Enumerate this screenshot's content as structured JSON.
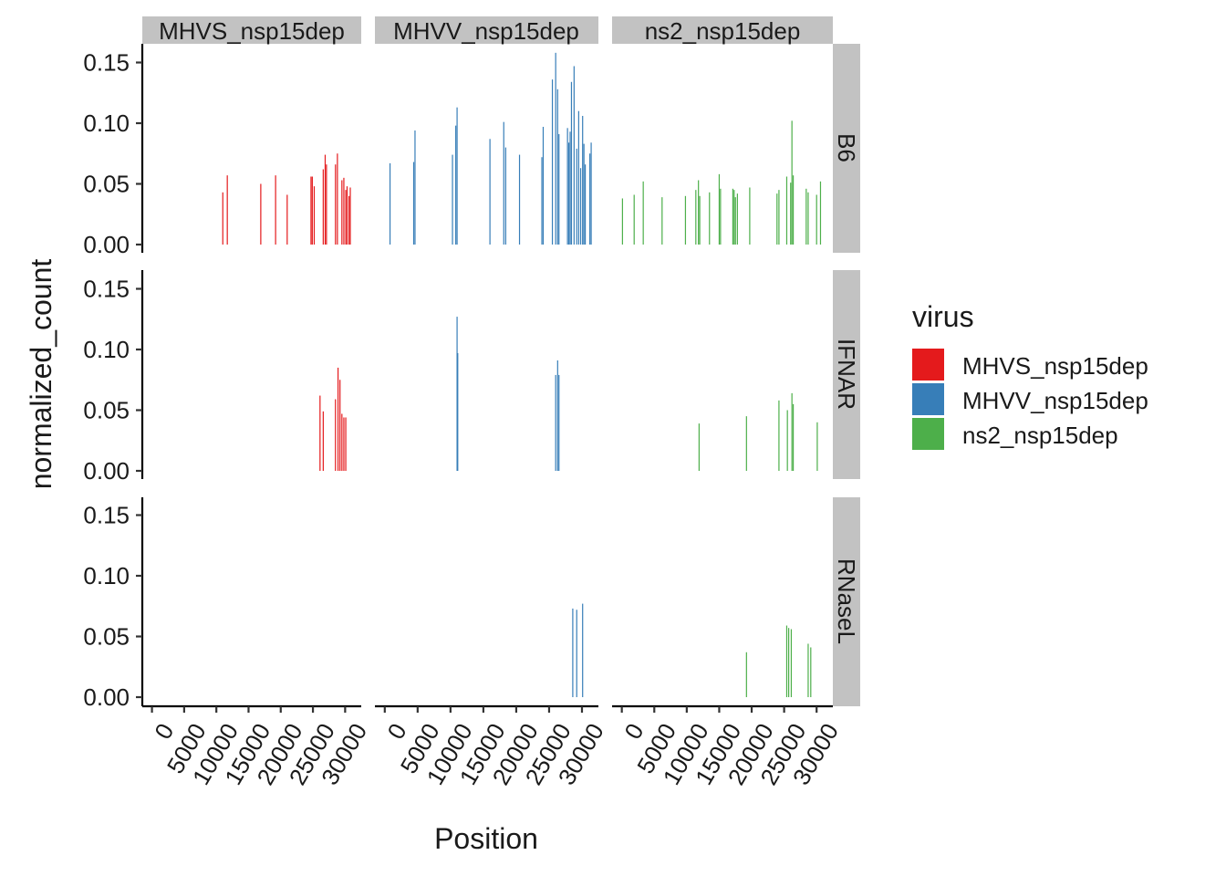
{
  "chart_data": {
    "type": "bar",
    "xlabel": "Position",
    "ylabel": "normalized_count",
    "xlim": [
      -1500,
      32500
    ],
    "ylim": [
      0,
      0.165
    ],
    "xticks": [
      "0",
      "5000",
      "10000",
      "15000",
      "20000",
      "25000",
      "30000"
    ],
    "yticks": [
      "0.00",
      "0.05",
      "0.10",
      "0.15"
    ],
    "column_facets": [
      "MHVS_nsp15dep",
      "MHVV_nsp15dep",
      "ns2_nsp15dep"
    ],
    "row_facets": [
      "B6",
      "IFNAR",
      "RNaseL"
    ],
    "legend": {
      "title": "virus",
      "position": "right",
      "items": [
        {
          "name": "MHVS_nsp15dep",
          "color": "#e41a1c"
        },
        {
          "name": "MHVV_nsp15dep",
          "color": "#377eb8"
        },
        {
          "name": "ns2_nsp15dep",
          "color": "#4daf4a"
        }
      ]
    },
    "panels": [
      {
        "row": "B6",
        "col": "MHVS_nsp15dep",
        "color": "#e41a1c",
        "x": [
          11000,
          11700,
          16900,
          19200,
          21000,
          24700,
          24900,
          25200,
          26600,
          26900,
          27100,
          28500,
          28800,
          29500,
          29800,
          30100,
          30300,
          30600,
          30800
        ],
        "y": [
          0.043,
          0.057,
          0.05,
          0.057,
          0.041,
          0.056,
          0.056,
          0.048,
          0.062,
          0.074,
          0.066,
          0.066,
          0.075,
          0.053,
          0.055,
          0.045,
          0.048,
          0.04,
          0.047
        ]
      },
      {
        "row": "B6",
        "col": "MHVV_nsp15dep",
        "color": "#377eb8",
        "x": [
          800,
          4400,
          4600,
          10300,
          10800,
          11000,
          16000,
          18100,
          18400,
          20500,
          23900,
          24100,
          25500,
          26000,
          26300,
          26500,
          27800,
          28000,
          28200,
          28400,
          28800,
          29200,
          29500,
          29800,
          30100,
          30300,
          30500,
          31200,
          31400
        ],
        "y": [
          0.067,
          0.068,
          0.094,
          0.074,
          0.098,
          0.113,
          0.087,
          0.101,
          0.08,
          0.074,
          0.072,
          0.097,
          0.136,
          0.158,
          0.128,
          0.091,
          0.096,
          0.084,
          0.093,
          0.134,
          0.147,
          0.079,
          0.11,
          0.063,
          0.106,
          0.083,
          0.066,
          0.075,
          0.084
        ]
      },
      {
        "row": "B6",
        "col": "ns2_nsp15dep",
        "color": "#4daf4a",
        "x": [
          100,
          1900,
          3300,
          6200,
          9800,
          11400,
          11800,
          12000,
          13500,
          15000,
          15200,
          17100,
          17300,
          17500,
          17800,
          19700,
          23900,
          24200,
          25400,
          26000,
          26200,
          26400,
          28400,
          28700,
          30000,
          30600
        ],
        "y": [
          0.038,
          0.041,
          0.052,
          0.039,
          0.04,
          0.045,
          0.053,
          0.04,
          0.043,
          0.058,
          0.046,
          0.046,
          0.045,
          0.039,
          0.042,
          0.047,
          0.042,
          0.045,
          0.056,
          0.051,
          0.102,
          0.057,
          0.046,
          0.043,
          0.041,
          0.052
        ]
      },
      {
        "row": "IFNAR",
        "col": "MHVS_nsp15dep",
        "color": "#e41a1c",
        "x": [
          26100,
          26600,
          28500,
          28900,
          29200,
          29500,
          29800,
          30100
        ],
        "y": [
          0.062,
          0.049,
          0.059,
          0.085,
          0.075,
          0.047,
          0.044,
          0.044
        ]
      },
      {
        "row": "IFNAR",
        "col": "MHVV_nsp15dep",
        "color": "#377eb8",
        "x": [
          11000,
          11100,
          26000,
          26300,
          26500
        ],
        "y": [
          0.127,
          0.097,
          0.079,
          0.091,
          0.079
        ]
      },
      {
        "row": "IFNAR",
        "col": "ns2_nsp15dep",
        "color": "#4daf4a",
        "x": [
          11900,
          19200,
          24200,
          25500,
          26200,
          26400,
          30100
        ],
        "y": [
          0.039,
          0.045,
          0.058,
          0.05,
          0.064,
          0.055,
          0.04
        ]
      },
      {
        "row": "RNaseL",
        "col": "MHVS_nsp15dep",
        "color": "#e41a1c",
        "x": [],
        "y": []
      },
      {
        "row": "RNaseL",
        "col": "MHVV_nsp15dep",
        "color": "#377eb8",
        "x": [
          28600,
          29200,
          30100
        ],
        "y": [
          0.073,
          0.072,
          0.077
        ]
      },
      {
        "row": "RNaseL",
        "col": "ns2_nsp15dep",
        "color": "#4daf4a",
        "x": [
          19200,
          25400,
          25700,
          26100,
          28700,
          29100
        ],
        "y": [
          0.037,
          0.059,
          0.057,
          0.056,
          0.044,
          0.041
        ]
      }
    ]
  }
}
